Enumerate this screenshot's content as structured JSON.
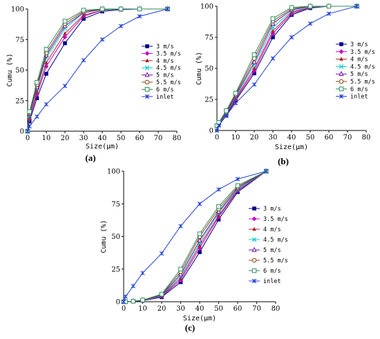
{
  "chart_data": [
    {
      "panel_label": "(a)",
      "type": "line",
      "xlabel": "Size(μm)",
      "ylabel": "Cumu (%)",
      "xlim": [
        0,
        80
      ],
      "ylim": [
        0,
        100
      ],
      "xticks": [
        0,
        10,
        20,
        30,
        40,
        50,
        60,
        70,
        80
      ],
      "yticks": [
        0,
        25,
        50,
        75,
        100
      ],
      "grid": false,
      "legend": "right",
      "x": [
        0,
        1,
        5,
        10,
        20,
        30,
        40,
        50,
        60,
        75
      ],
      "series": [
        {
          "name": "3 m/s",
          "color": "#00008b",
          "marker": "square",
          "values": [
            0,
            8,
            27,
            47,
            72,
            92,
            98,
            99.5,
            100,
            100
          ]
        },
        {
          "name": "3.5 m/s",
          "color": "#cc00cc",
          "marker": "diamond",
          "values": [
            0,
            10,
            30,
            53,
            77,
            94,
            99,
            100,
            100,
            100
          ]
        },
        {
          "name": "4 m/s",
          "color": "#b22222",
          "marker": "triangle",
          "values": [
            0,
            11,
            32,
            56,
            80,
            95,
            99,
            100,
            100,
            100
          ]
        },
        {
          "name": "4.5 m/s",
          "color": "#00cccc",
          "marker": "x",
          "values": [
            0,
            13,
            35,
            60,
            84,
            97,
            99.5,
            100,
            100,
            100
          ]
        },
        {
          "name": "5 m/s",
          "color": "#6a0dad",
          "marker": "triangle-open",
          "values": [
            0,
            14,
            36,
            62,
            86,
            97,
            100,
            100,
            100,
            100
          ]
        },
        {
          "name": "5.5 m/s",
          "color": "#8b4513",
          "marker": "circle-open",
          "values": [
            0,
            15,
            38,
            64,
            88,
            98,
            100,
            100,
            100,
            100
          ]
        },
        {
          "name": "6 m/s",
          "color": "#2e8b57",
          "marker": "square-open",
          "values": [
            0,
            16,
            40,
            67,
            90,
            99,
            100,
            100,
            100,
            100
          ]
        },
        {
          "name": "inlet",
          "color": "#1f3fd6",
          "marker": "star",
          "values": [
            0,
            4,
            12,
            22,
            37,
            58,
            75,
            86,
            94,
            100
          ]
        }
      ]
    },
    {
      "panel_label": "(b)",
      "type": "line",
      "xlabel": "Size(μm)",
      "ylabel": "Cumu (%)",
      "xlim": [
        0,
        80
      ],
      "ylim": [
        0,
        100
      ],
      "xticks": [
        0,
        10,
        20,
        30,
        40,
        50,
        60,
        70,
        80
      ],
      "yticks": [
        0,
        25,
        50,
        75,
        100
      ],
      "grid": false,
      "legend": "right",
      "x": [
        0,
        1,
        5,
        10,
        20,
        30,
        40,
        50,
        60,
        75
      ],
      "series": [
        {
          "name": "3 m/s",
          "color": "#00008b",
          "marker": "square",
          "values": [
            4,
            5,
            12,
            24,
            46,
            75,
            93,
            98.5,
            100,
            100
          ]
        },
        {
          "name": "3.5 m/s",
          "color": "#cc00cc",
          "marker": "diamond",
          "values": [
            4,
            5,
            12.5,
            25,
            48,
            78,
            94,
            99,
            100,
            100
          ]
        },
        {
          "name": "4 m/s",
          "color": "#b22222",
          "marker": "triangle",
          "values": [
            4,
            5.5,
            13,
            26,
            50,
            80,
            95,
            99,
            100,
            100
          ]
        },
        {
          "name": "4.5 m/s",
          "color": "#00cccc",
          "marker": "x",
          "values": [
            4,
            5.5,
            13.5,
            27,
            53,
            83,
            96,
            99.5,
            100,
            100
          ]
        },
        {
          "name": "5 m/s",
          "color": "#6a0dad",
          "marker": "triangle-open",
          "values": [
            4,
            6,
            14,
            28,
            55,
            86,
            97,
            100,
            100,
            100
          ]
        },
        {
          "name": "5.5 m/s",
          "color": "#8b4513",
          "marker": "circle-open",
          "values": [
            4,
            6,
            15,
            29,
            58,
            88,
            98,
            100,
            100,
            100
          ]
        },
        {
          "name": "6 m/s",
          "color": "#2e8b57",
          "marker": "square-open",
          "values": [
            4,
            6.5,
            16,
            30,
            61,
            90,
            99,
            100,
            100,
            100
          ]
        },
        {
          "name": "inlet",
          "color": "#1f3fd6",
          "marker": "star",
          "values": [
            0,
            4,
            12,
            22,
            37,
            58,
            75,
            86,
            94,
            100
          ]
        }
      ]
    },
    {
      "panel_label": "(c)",
      "type": "line",
      "xlabel": "Size(μm)",
      "ylabel": "Cumu (%)",
      "xlim": [
        0,
        80
      ],
      "ylim": [
        0,
        100
      ],
      "xticks": [
        0,
        10,
        20,
        30,
        40,
        50,
        60,
        70,
        80
      ],
      "yticks": [
        0,
        25,
        50,
        75,
        100
      ],
      "grid": false,
      "legend": "right",
      "x": [
        0,
        1,
        5,
        10,
        20,
        30,
        40,
        50,
        60,
        75
      ],
      "series": [
        {
          "name": "3 m/s",
          "color": "#00008b",
          "marker": "square",
          "values": [
            0,
            0,
            0.2,
            0.8,
            3.5,
            15,
            38,
            63,
            84,
            100
          ]
        },
        {
          "name": "3.5 m/s",
          "color": "#cc00cc",
          "marker": "diamond",
          "values": [
            0,
            0,
            0.2,
            0.9,
            4,
            16.5,
            41,
            65,
            85,
            100
          ]
        },
        {
          "name": "4 m/s",
          "color": "#b22222",
          "marker": "triangle",
          "values": [
            0,
            0,
            0.3,
            1,
            4.3,
            18,
            43,
            66,
            85.5,
            100
          ]
        },
        {
          "name": "4.5 m/s",
          "color": "#00cccc",
          "marker": "x",
          "values": [
            0,
            0,
            0.3,
            1,
            4.6,
            19.5,
            45,
            68,
            86,
            100
          ]
        },
        {
          "name": "5 m/s",
          "color": "#6a0dad",
          "marker": "triangle-open",
          "values": [
            0,
            0,
            0.3,
            1.1,
            5,
            21,
            47,
            69,
            87,
            100
          ]
        },
        {
          "name": "5.5 m/s",
          "color": "#8b4513",
          "marker": "circle-open",
          "values": [
            0,
            0,
            0.4,
            1.2,
            5.4,
            23,
            50,
            71,
            88,
            100
          ]
        },
        {
          "name": "6 m/s",
          "color": "#2e8b57",
          "marker": "square-open",
          "values": [
            0,
            0,
            0.4,
            1.3,
            5.8,
            25,
            52,
            73,
            89,
            100
          ]
        },
        {
          "name": "inlet",
          "color": "#1f3fd6",
          "marker": "star",
          "values": [
            0,
            4,
            12,
            22,
            37,
            58,
            75,
            86,
            94,
            100
          ]
        }
      ]
    }
  ]
}
